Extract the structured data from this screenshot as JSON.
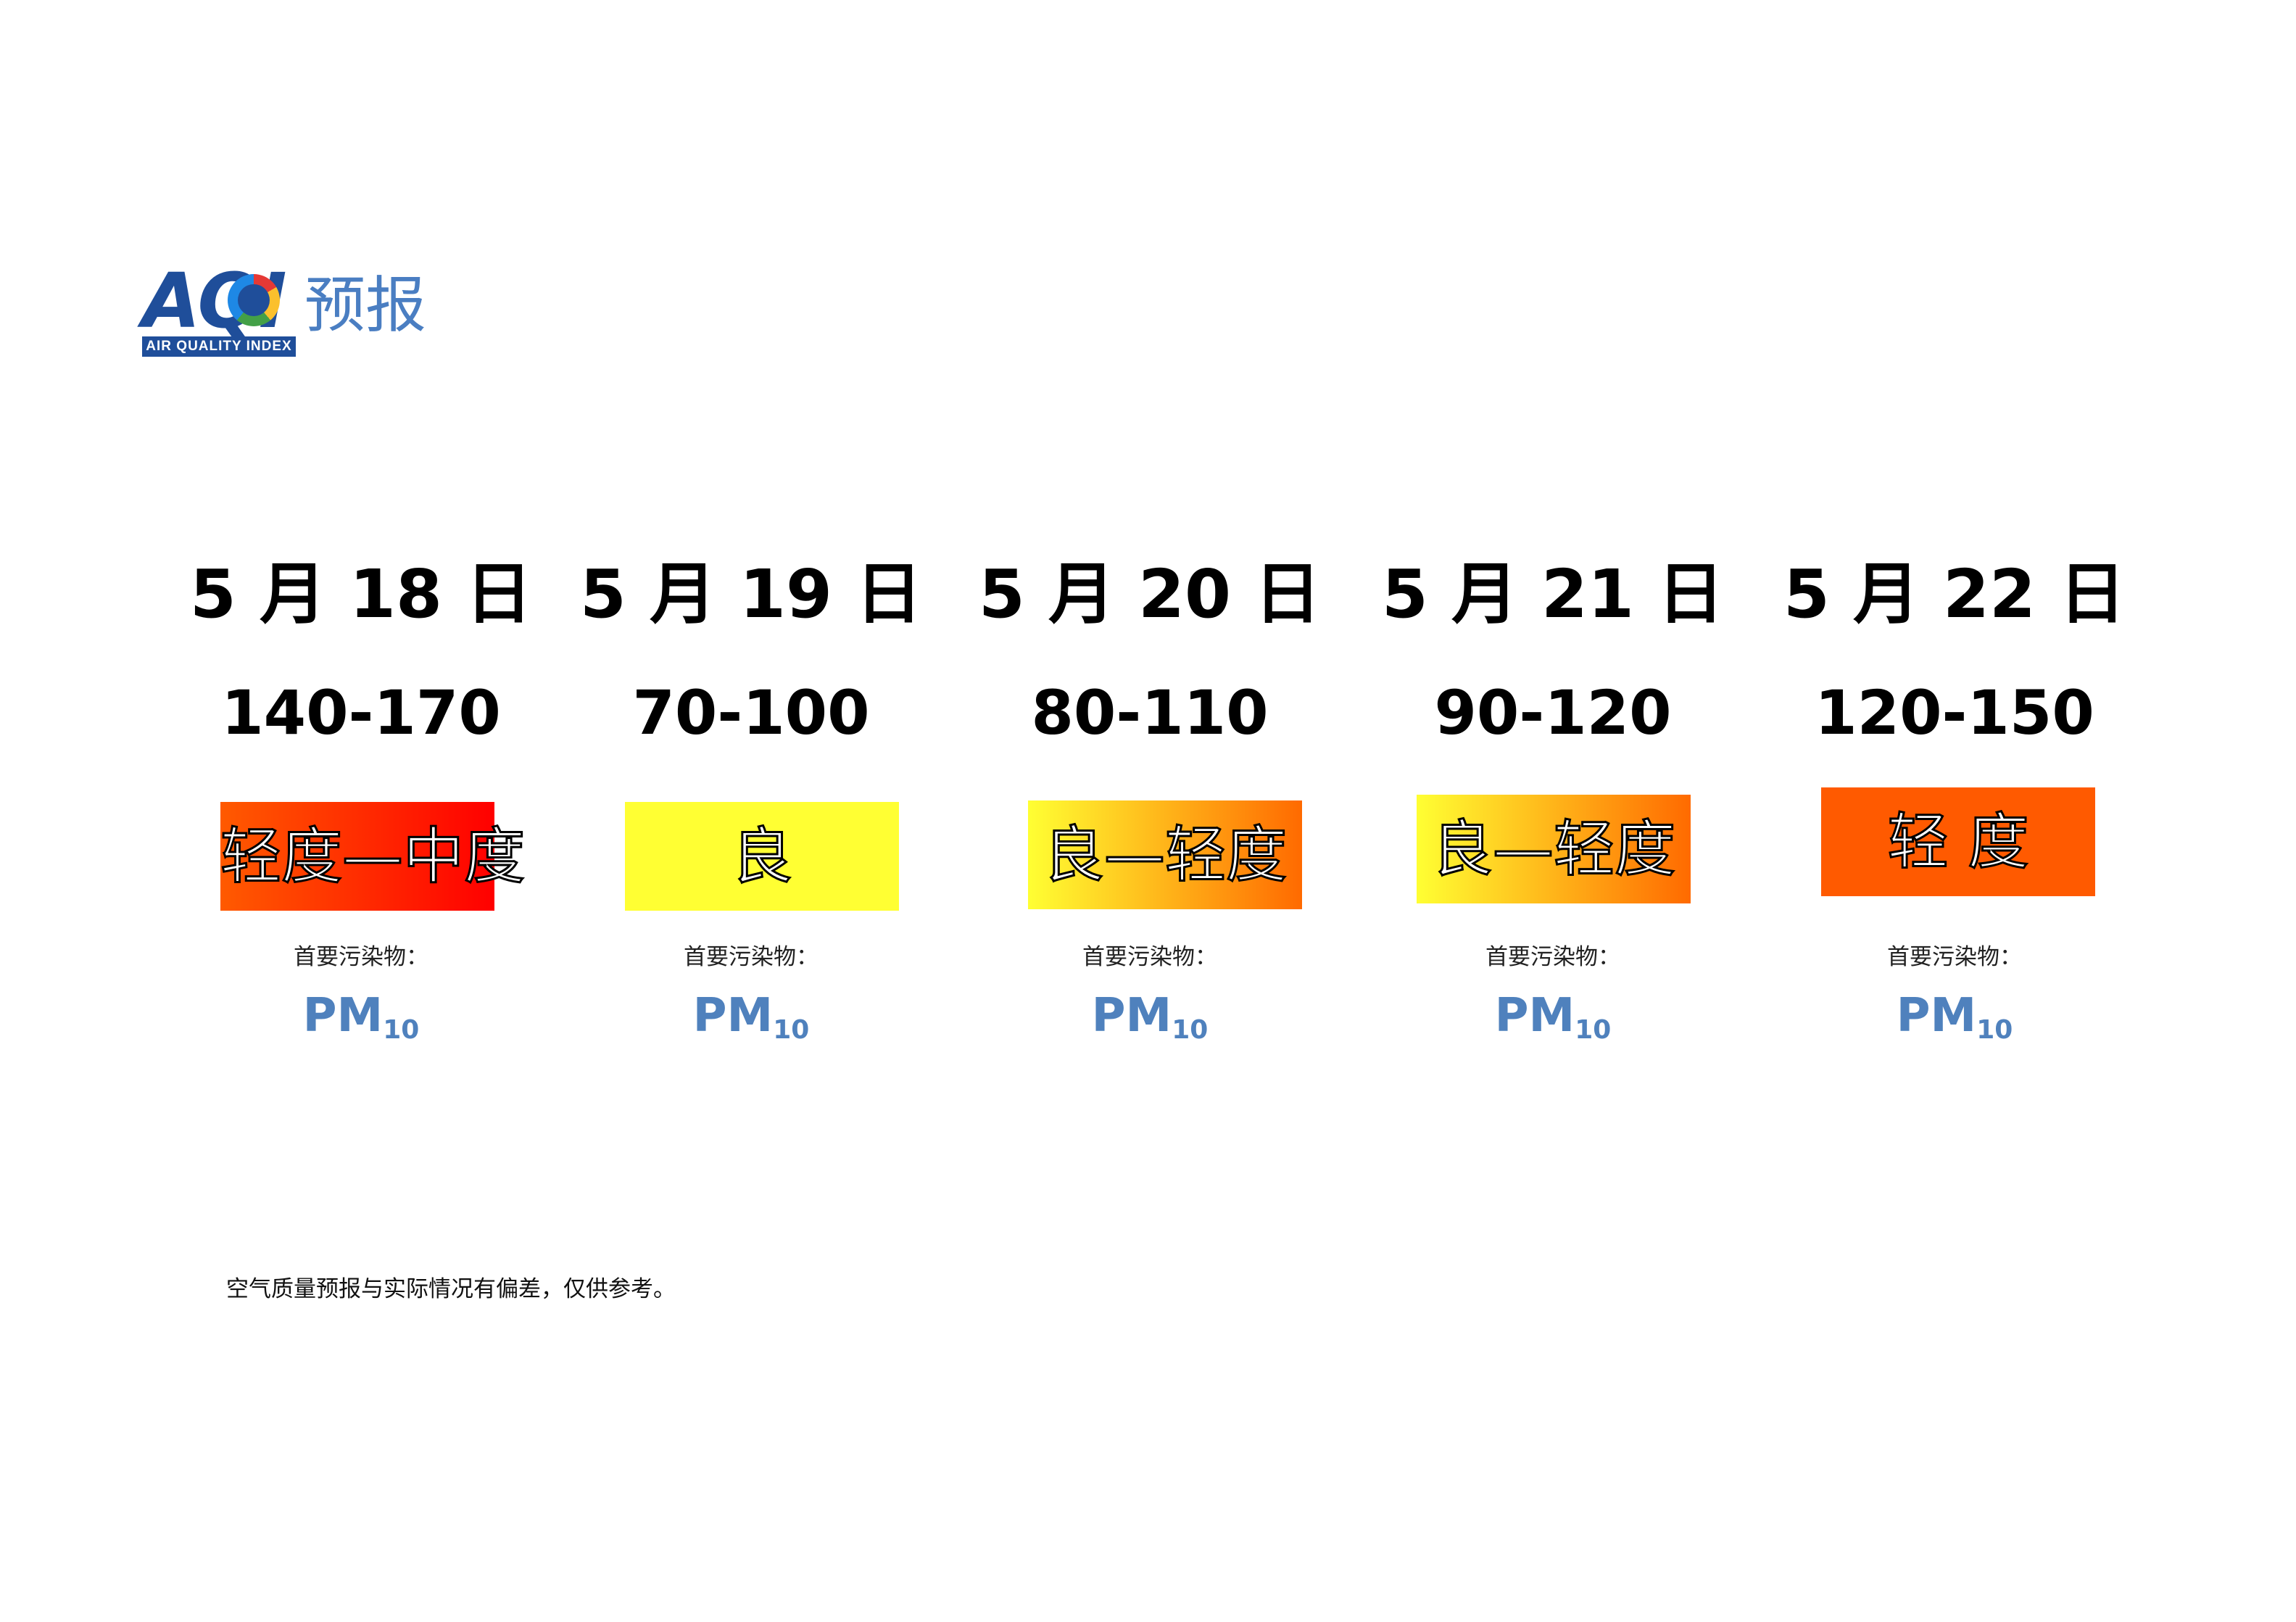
{
  "logo": {
    "acronym": "AQI",
    "subtitle": "AIR QUALITY INDEX",
    "title": "预报"
  },
  "forecast": [
    {
      "date": "5 月 18 日",
      "aqi_range": "140-170",
      "level": "轻度—中度",
      "level_colors": [
        "#ff5a00",
        "#ff0000"
      ],
      "pollutant_label": "首要污染物：",
      "pollutant": "PM",
      "pollutant_sub": "10"
    },
    {
      "date": "5 月 19 日",
      "aqi_range": "70-100",
      "level": "良",
      "level_colors": [
        "#ffff33",
        "#ffff33"
      ],
      "pollutant_label": "首要污染物：",
      "pollutant": "PM",
      "pollutant_sub": "10"
    },
    {
      "date": "5 月 20 日",
      "aqi_range": "80-110",
      "level": "良—轻度",
      "level_colors": [
        "#ffff33",
        "#ff6a00"
      ],
      "pollutant_label": "首要污染物：",
      "pollutant": "PM",
      "pollutant_sub": "10"
    },
    {
      "date": "5 月 21 日",
      "aqi_range": "90-120",
      "level": "良—轻度",
      "level_colors": [
        "#ffff33",
        "#ff6a00"
      ],
      "pollutant_label": "首要污染物：",
      "pollutant": "PM",
      "pollutant_sub": "10"
    },
    {
      "date": "5 月 22 日",
      "aqi_range": "120-150",
      "level": "轻 度",
      "level_colors": [
        "#ff5a00",
        "#ff5a00"
      ],
      "pollutant_label": "首要污染物：",
      "pollutant": "PM",
      "pollutant_sub": "10"
    }
  ],
  "note": "空气质量预报与实际情况有偏差，仅供参考。"
}
